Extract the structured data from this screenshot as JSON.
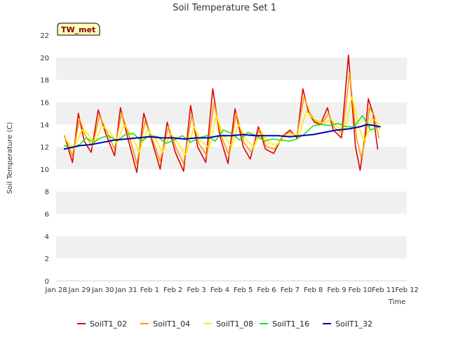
{
  "chart_data": {
    "type": "line",
    "title": "Soil Temperature Set 1",
    "xlabel": "Time",
    "ylabel": "Soil Temperature (C)",
    "badge": "TW_met",
    "ylim": [
      0,
      22
    ],
    "yticks": [
      0,
      2,
      4,
      6,
      8,
      10,
      12,
      14,
      16,
      18,
      20,
      22
    ],
    "xlim": [
      0,
      15
    ],
    "xticks": [
      0,
      1,
      2,
      3,
      4,
      5,
      6,
      7,
      8,
      9,
      10,
      11,
      12,
      13,
      14,
      15
    ],
    "xtick_labels": [
      "Jan 28",
      "Jan 29",
      "Jan 30",
      "Jan 31",
      "Feb 1",
      "Feb 2",
      "Feb 3",
      "Feb 4",
      "Feb 5",
      "Feb 6",
      "Feb 7",
      "Feb 8",
      "Feb 9",
      "Feb 10",
      "Feb 11",
      "Feb 12"
    ],
    "grid": "horizontal bands",
    "legend_position": "bottom",
    "series": [
      {
        "name": "SoilT1_02",
        "color": "#e00000",
        "x": [
          0.35,
          0.7,
          0.95,
          1.2,
          1.5,
          1.8,
          2.15,
          2.5,
          2.75,
          3.1,
          3.45,
          3.75,
          4.1,
          4.45,
          4.75,
          5.1,
          5.45,
          5.75,
          6.05,
          6.4,
          6.7,
          7.0,
          7.35,
          7.65,
          8.0,
          8.3,
          8.65,
          8.95,
          9.3,
          9.7,
          10.0,
          10.3,
          10.55,
          10.8,
          11.05,
          11.3,
          11.6,
          11.85,
          12.2,
          12.5,
          12.8,
          13.0,
          13.2,
          13.35,
          13.55,
          13.75,
          13.95,
          14.15,
          14.3,
          14.45
        ],
        "y": [
          13.0,
          10.6,
          15.0,
          12.5,
          11.5,
          15.3,
          13.0,
          11.2,
          15.5,
          12.5,
          9.7,
          15.0,
          12.5,
          10.0,
          14.2,
          11.5,
          9.8,
          15.7,
          12.0,
          10.6,
          17.2,
          13.0,
          10.5,
          15.4,
          12.0,
          10.9,
          13.8,
          11.8,
          11.4,
          13.0,
          13.5,
          12.8,
          17.2,
          15.0,
          14.2,
          14.0,
          15.5,
          13.5,
          12.8,
          20.2,
          12.0,
          9.9,
          12.8,
          16.3,
          15.0,
          11.8,
          null,
          null,
          null,
          null
        ]
      },
      {
        "name": "SoilT1_04",
        "color": "#ff9900",
        "x": [
          0.35,
          0.7,
          1.0,
          1.25,
          1.55,
          1.85,
          2.2,
          2.5,
          2.8,
          3.15,
          3.45,
          3.8,
          4.15,
          4.45,
          4.8,
          5.15,
          5.45,
          5.8,
          6.1,
          6.45,
          6.75,
          7.05,
          7.4,
          7.7,
          8.05,
          8.35,
          8.7,
          9.0,
          9.35,
          9.7,
          10.0,
          10.3,
          10.6,
          10.85,
          11.1,
          11.35,
          11.65,
          11.9,
          12.25,
          12.55,
          12.85,
          13.05,
          13.25,
          13.4,
          13.6,
          13.8
        ],
        "y": [
          13.0,
          11.2,
          14.5,
          13.0,
          12.0,
          14.8,
          13.2,
          11.8,
          15.0,
          12.8,
          10.5,
          14.3,
          12.5,
          10.7,
          13.8,
          11.8,
          10.5,
          14.8,
          12.3,
          11.2,
          16.0,
          13.0,
          11.2,
          15.0,
          12.3,
          11.5,
          13.6,
          12.0,
          11.8,
          13.0,
          13.3,
          13.0,
          16.5,
          15.0,
          14.3,
          14.0,
          15.0,
          13.7,
          13.2,
          18.6,
          12.8,
          11.0,
          13.0,
          15.5,
          14.8,
          12.8
        ]
      },
      {
        "name": "SoilT1_08",
        "color": "#ffee00",
        "x": [
          0.35,
          0.75,
          1.1,
          1.35,
          1.65,
          1.95,
          2.3,
          2.6,
          2.9,
          3.25,
          3.55,
          3.9,
          4.25,
          4.55,
          4.9,
          5.25,
          5.55,
          5.9,
          6.2,
          6.55,
          6.85,
          7.15,
          7.5,
          7.8,
          8.15,
          8.45,
          8.8,
          9.1,
          9.45,
          9.8,
          10.1,
          10.4,
          10.7,
          10.95,
          11.2,
          11.45,
          11.75,
          12.0,
          12.35,
          12.65,
          12.95,
          13.15,
          13.35,
          13.5,
          13.7,
          13.85
        ],
        "y": [
          12.8,
          11.8,
          13.5,
          13.2,
          12.3,
          13.9,
          13.3,
          12.3,
          14.0,
          13.0,
          11.5,
          13.5,
          12.7,
          11.5,
          13.2,
          12.2,
          11.3,
          13.8,
          12.5,
          11.9,
          14.8,
          13.1,
          12.0,
          14.0,
          12.6,
          12.0,
          13.3,
          12.3,
          12.2,
          12.9,
          13.1,
          13.1,
          15.2,
          14.6,
          14.3,
          14.1,
          14.5,
          13.8,
          13.5,
          16.5,
          13.8,
          12.5,
          13.3,
          14.5,
          14.3,
          13.5
        ]
      },
      {
        "name": "SoilT1_16",
        "color": "#22dd22",
        "x": [
          0.35,
          0.7,
          1.0,
          1.3,
          1.6,
          1.9,
          2.25,
          2.6,
          2.95,
          3.3,
          3.65,
          4.0,
          4.35,
          4.7,
          5.05,
          5.4,
          5.75,
          6.1,
          6.45,
          6.8,
          7.15,
          7.5,
          7.85,
          8.2,
          8.55,
          8.9,
          9.25,
          9.6,
          9.95,
          10.3,
          10.65,
          11.0,
          11.35,
          11.7,
          12.05,
          12.4,
          12.75,
          13.1,
          13.45,
          13.8
        ],
        "y": [
          12.1,
          11.9,
          12.2,
          12.8,
          12.4,
          12.8,
          13.0,
          12.5,
          13.1,
          13.2,
          12.5,
          13.0,
          12.9,
          12.3,
          12.6,
          13.0,
          12.4,
          12.8,
          13.0,
          12.5,
          13.5,
          13.2,
          12.6,
          13.3,
          13.0,
          12.5,
          12.7,
          12.6,
          12.5,
          12.7,
          13.2,
          13.9,
          14.0,
          13.9,
          14.1,
          13.8,
          13.8,
          14.8,
          13.5,
          13.8
        ]
      },
      {
        "name": "SoilT1_32",
        "color": "#0000bb",
        "x": [
          0.35,
          1.0,
          1.5,
          2.0,
          2.5,
          3.0,
          3.5,
          4.0,
          4.5,
          5.0,
          5.5,
          6.0,
          6.5,
          7.0,
          7.5,
          8.0,
          8.5,
          9.0,
          9.5,
          10.0,
          10.5,
          11.0,
          11.5,
          12.0,
          12.5,
          13.0,
          13.3,
          13.6,
          13.85
        ],
        "y": [
          11.8,
          12.1,
          12.2,
          12.4,
          12.6,
          12.7,
          12.8,
          12.9,
          12.8,
          12.8,
          12.7,
          12.8,
          12.8,
          13.0,
          13.0,
          13.1,
          13.0,
          13.0,
          13.0,
          12.9,
          13.0,
          13.1,
          13.3,
          13.5,
          13.6,
          13.8,
          14.0,
          13.9,
          13.8
        ]
      }
    ]
  }
}
